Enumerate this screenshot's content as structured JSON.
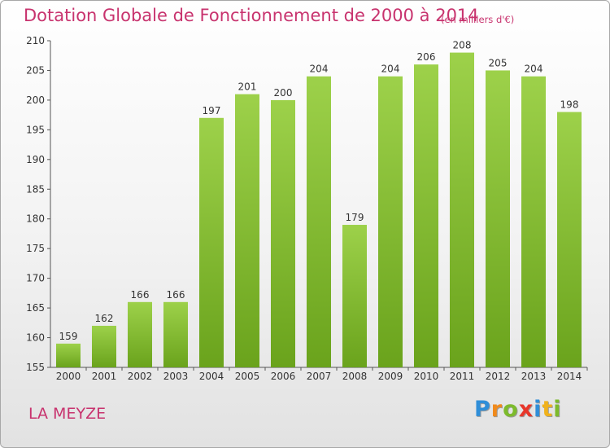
{
  "chart_data": {
    "type": "bar",
    "title": "Dotation Globale de Fonctionnement de 2000 à 2014",
    "unit_note": "(en milliers d'€)",
    "categories": [
      "2000",
      "2001",
      "2002",
      "2003",
      "2004",
      "2005",
      "2006",
      "2007",
      "2008",
      "2009",
      "2010",
      "2011",
      "2012",
      "2013",
      "2014"
    ],
    "values": [
      159,
      162,
      166,
      166,
      197,
      201,
      200,
      204,
      179,
      204,
      206,
      208,
      205,
      204,
      198
    ],
    "yticks": [
      155,
      160,
      165,
      170,
      175,
      180,
      185,
      190,
      195,
      200,
      205,
      210
    ],
    "ylim": [
      155,
      210
    ],
    "xlabel": "",
    "ylabel": "",
    "grid": false,
    "colors": {
      "bar_light": "#9dd14a",
      "bar_dark": "#6aa31c",
      "title": "#c8336e"
    }
  },
  "commune": "LA MEYZE",
  "logo": {
    "letters": [
      "P",
      "r",
      "o",
      "x",
      "i",
      "t",
      "i"
    ],
    "colors": [
      "#2f8ed8",
      "#f08a1c",
      "#7dbb2c",
      "#e8362a",
      "#2f8ed8",
      "#f0b21c",
      "#7dbb2c"
    ]
  }
}
